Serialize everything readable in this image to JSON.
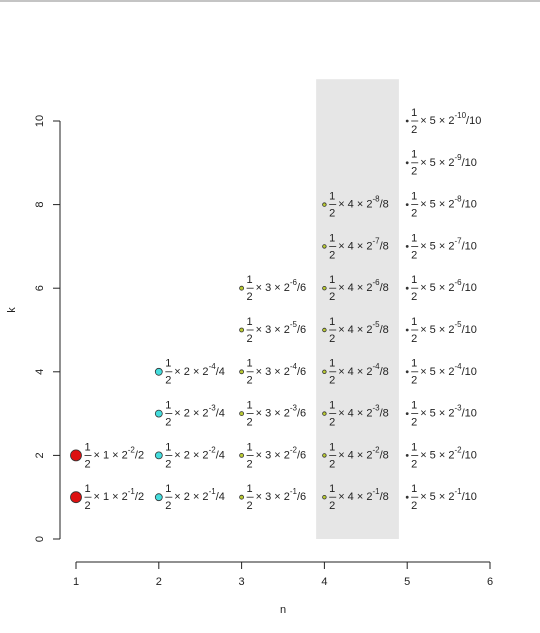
{
  "chart_data": {
    "type": "scatter",
    "xlabel": "n",
    "ylabel": "k",
    "xlim": [
      1,
      6
    ],
    "ylim": [
      0,
      10
    ],
    "xticks": [
      1,
      2,
      3,
      4,
      5,
      6
    ],
    "yticks": [
      0,
      2,
      4,
      6,
      8,
      10
    ],
    "highlight": {
      "x": [
        3.9,
        4.9
      ],
      "y": [
        0,
        11
      ],
      "color": "#e6e6e6"
    },
    "fraction": {
      "num": "1",
      "den": "2"
    },
    "series": [
      {
        "color": "#dd1111",
        "size": 5.5,
        "x": [
          1,
          1
        ],
        "values": [
          1,
          2
        ],
        "labels": [
          {
            "mid": "× 1 × 2",
            "exp": "-1",
            "end": "/2"
          },
          {
            "mid": "× 1 × 2",
            "exp": "-2",
            "end": "/2"
          }
        ]
      },
      {
        "color": "#44dddd",
        "size": 3.5,
        "x": [
          2,
          2,
          2,
          2
        ],
        "values": [
          1,
          2,
          3,
          4
        ],
        "labels": [
          {
            "mid": "× 2 × 2",
            "exp": "-1",
            "end": "/4"
          },
          {
            "mid": "× 2 × 2",
            "exp": "-2",
            "end": "/4"
          },
          {
            "mid": "× 2 × 2",
            "exp": "-3",
            "end": "/4"
          },
          {
            "mid": "× 2 × 2",
            "exp": "-4",
            "end": "/4"
          }
        ]
      },
      {
        "color": "#bbcc33",
        "size": 2,
        "x": [
          3,
          3,
          3,
          3,
          3,
          3
        ],
        "values": [
          1,
          2,
          3,
          4,
          5,
          6
        ],
        "labels": [
          {
            "mid": "× 3 × 2",
            "exp": "-1",
            "end": "/6"
          },
          {
            "mid": "× 3 × 2",
            "exp": "-2",
            "end": "/6"
          },
          {
            "mid": "× 3 × 2",
            "exp": "-3",
            "end": "/6"
          },
          {
            "mid": "× 3 × 2",
            "exp": "-4",
            "end": "/6"
          },
          {
            "mid": "× 3 × 2",
            "exp": "-5",
            "end": "/6"
          },
          {
            "mid": "× 3 × 2",
            "exp": "-6",
            "end": "/6"
          }
        ]
      },
      {
        "color": "#bbcc33",
        "size": 1.8,
        "x": [
          4,
          4,
          4,
          4,
          4,
          4,
          4,
          4
        ],
        "values": [
          1,
          2,
          3,
          4,
          5,
          6,
          7,
          8
        ],
        "labels": [
          {
            "mid": "× 4 × 2",
            "exp": "-1",
            "end": "/8"
          },
          {
            "mid": "× 4 × 2",
            "exp": "-2",
            "end": "/8"
          },
          {
            "mid": "× 4 × 2",
            "exp": "-3",
            "end": "/8"
          },
          {
            "mid": "× 4 × 2",
            "exp": "-4",
            "end": "/8"
          },
          {
            "mid": "× 4 × 2",
            "exp": "-5",
            "end": "/8"
          },
          {
            "mid": "× 4 × 2",
            "exp": "-6",
            "end": "/8"
          },
          {
            "mid": "× 4 × 2",
            "exp": "-7",
            "end": "/8"
          },
          {
            "mid": "× 4 × 2",
            "exp": "-8",
            "end": "/8"
          }
        ]
      },
      {
        "color": "#333333",
        "size": 1,
        "x": [
          5,
          5,
          5,
          5,
          5,
          5,
          5,
          5,
          5,
          5
        ],
        "values": [
          1,
          2,
          3,
          4,
          5,
          6,
          7,
          8,
          9,
          10
        ],
        "labels": [
          {
            "mid": "× 5 × 2",
            "exp": "-1",
            "end": "/10"
          },
          {
            "mid": "× 5 × 2",
            "exp": "-2",
            "end": "/10"
          },
          {
            "mid": "× 5 × 2",
            "exp": "-3",
            "end": "/10"
          },
          {
            "mid": "× 5 × 2",
            "exp": "-4",
            "end": "/10"
          },
          {
            "mid": "× 5 × 2",
            "exp": "-5",
            "end": "/10"
          },
          {
            "mid": "× 5 × 2",
            "exp": "-6",
            "end": "/10"
          },
          {
            "mid": "× 5 × 2",
            "exp": "-7",
            "end": "/10"
          },
          {
            "mid": "× 5 × 2",
            "exp": "-8",
            "end": "/10"
          },
          {
            "mid": "× 5 × 2",
            "exp": "-9",
            "end": "/10"
          },
          {
            "mid": "× 5 × 2",
            "exp": "-10",
            "end": "/10"
          }
        ]
      }
    ]
  }
}
